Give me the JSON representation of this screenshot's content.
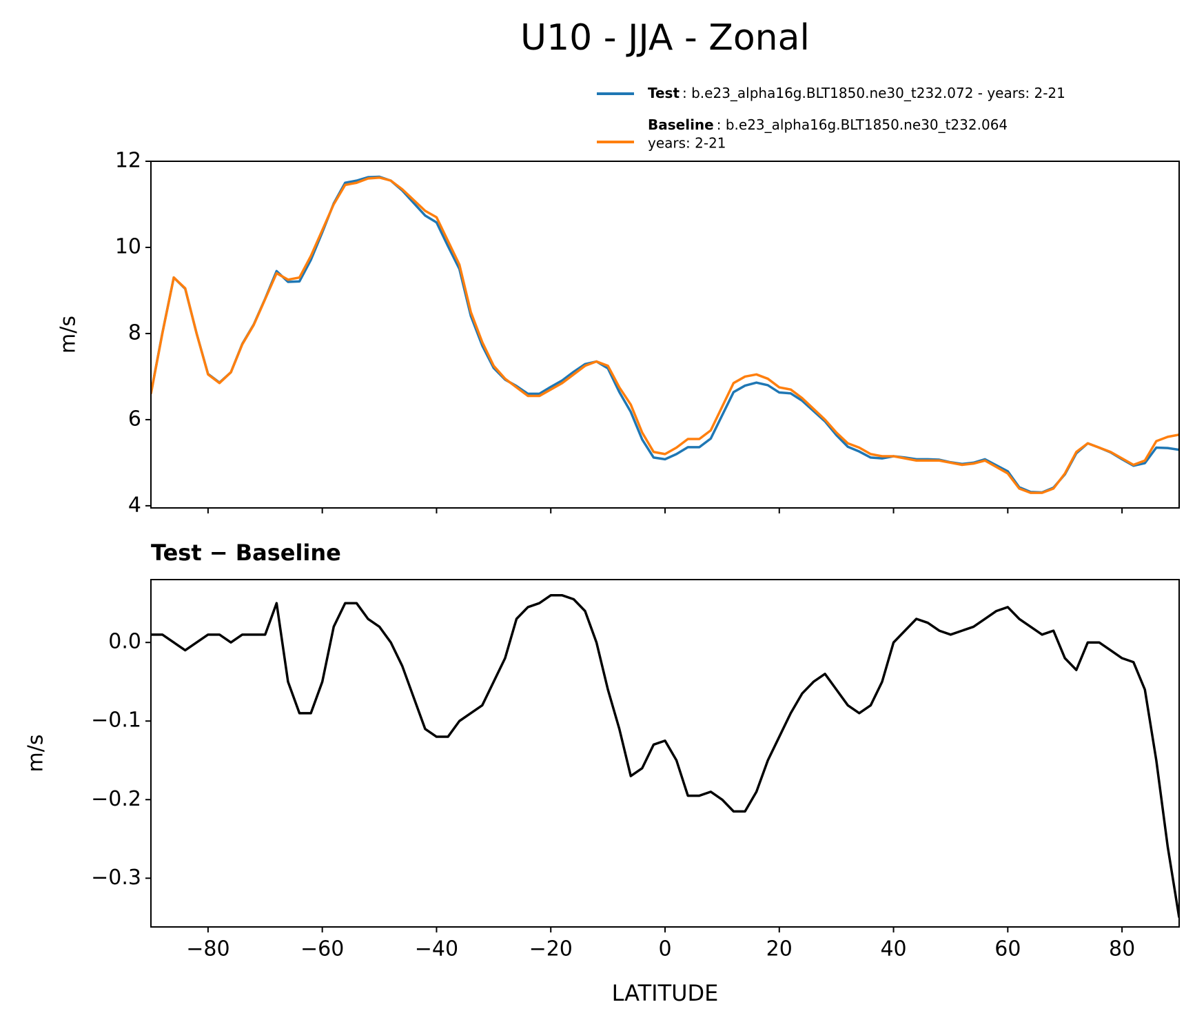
{
  "title": "U10 - JJA - Zonal",
  "chart_data": [
    {
      "type": "line",
      "ylabel": "m/s",
      "x": [
        -90,
        -88,
        -86,
        -84,
        -82,
        -80,
        -78,
        -76,
        -74,
        -72,
        -70,
        -68,
        -66,
        -64,
        -62,
        -60,
        -58,
        -56,
        -54,
        -52,
        -50,
        -48,
        -46,
        -44,
        -42,
        -40,
        -38,
        -36,
        -34,
        -32,
        -30,
        -28,
        -26,
        -24,
        -22,
        -20,
        -18,
        -16,
        -14,
        -12,
        -10,
        -8,
        -6,
        -4,
        -2,
        0,
        2,
        4,
        6,
        8,
        10,
        12,
        14,
        16,
        18,
        20,
        22,
        24,
        26,
        28,
        30,
        32,
        34,
        36,
        38,
        40,
        42,
        44,
        46,
        48,
        50,
        52,
        54,
        56,
        58,
        60,
        62,
        64,
        66,
        68,
        70,
        72,
        74,
        76,
        78,
        80,
        82,
        84,
        86,
        88,
        90
      ],
      "xlim": [
        -90,
        90
      ],
      "xticks": [
        -80,
        -60,
        -40,
        -20,
        0,
        20,
        40,
        60,
        80
      ],
      "ylim": [
        3.95,
        12
      ],
      "yticks": [
        4,
        6,
        8,
        10,
        12
      ],
      "series": [
        {
          "name": "Test",
          "description": [
            ": b.e23_alpha16g.BLT1850.ne30_t232.072 - years: 2-21"
          ],
          "color": "#1f77b4",
          "values": [
            6.61,
            8.01,
            9.3,
            9.04,
            8.0,
            7.06,
            6.86,
            7.1,
            7.76,
            8.21,
            8.81,
            9.45,
            9.2,
            9.21,
            9.71,
            10.35,
            11.02,
            11.5,
            11.55,
            11.63,
            11.64,
            11.55,
            11.32,
            11.03,
            10.74,
            10.58,
            10.03,
            9.5,
            8.41,
            7.72,
            7.2,
            6.93,
            6.78,
            6.6,
            6.6,
            6.76,
            6.91,
            7.11,
            7.29,
            7.35,
            7.19,
            6.64,
            6.18,
            5.54,
            5.12,
            5.08,
            5.2,
            5.36,
            5.36,
            5.56,
            6.1,
            6.64,
            6.79,
            6.86,
            6.8,
            6.63,
            6.61,
            6.44,
            6.2,
            5.96,
            5.64,
            5.37,
            5.26,
            5.12,
            5.1,
            5.15,
            5.12,
            5.08,
            5.08,
            5.07,
            5.01,
            4.97,
            5.0,
            5.08,
            4.94,
            4.8,
            4.43,
            4.32,
            4.31,
            4.42,
            4.73,
            5.22,
            5.45,
            5.35,
            5.24,
            5.08,
            4.93,
            4.99,
            5.35,
            5.34,
            5.3
          ]
        },
        {
          "name": "Baseline",
          "description": [
            ": b.e23_alpha16g.BLT1850.ne30_t232.064",
            "years: 2-21"
          ],
          "color": "#ff7f0e",
          "values": [
            6.6,
            8.0,
            9.3,
            9.05,
            8.0,
            7.05,
            6.85,
            7.1,
            7.75,
            8.2,
            8.8,
            9.4,
            9.25,
            9.3,
            9.8,
            10.4,
            11.0,
            11.45,
            11.5,
            11.6,
            11.62,
            11.55,
            11.35,
            11.1,
            10.85,
            10.7,
            10.15,
            9.6,
            8.5,
            7.8,
            7.25,
            6.95,
            6.75,
            6.55,
            6.55,
            6.7,
            6.85,
            7.05,
            7.25,
            7.35,
            7.25,
            6.75,
            6.35,
            5.7,
            5.25,
            5.2,
            5.35,
            5.55,
            5.55,
            5.75,
            6.3,
            6.85,
            7.0,
            7.05,
            6.95,
            6.75,
            6.7,
            6.5,
            6.25,
            6.0,
            5.7,
            5.45,
            5.35,
            5.2,
            5.15,
            5.15,
            5.1,
            5.05,
            5.05,
            5.05,
            5.0,
            4.95,
            4.98,
            5.05,
            4.9,
            4.75,
            4.4,
            4.3,
            4.3,
            4.4,
            4.75,
            5.25,
            5.45,
            5.35,
            5.25,
            5.1,
            4.95,
            5.05,
            5.5,
            5.6,
            5.65
          ]
        }
      ]
    },
    {
      "type": "line",
      "title": "Test − Baseline",
      "ylabel": "m/s",
      "xlabel": "LATITUDE",
      "x": [
        -90,
        -88,
        -86,
        -84,
        -82,
        -80,
        -78,
        -76,
        -74,
        -72,
        -70,
        -68,
        -66,
        -64,
        -62,
        -60,
        -58,
        -56,
        -54,
        -52,
        -50,
        -48,
        -46,
        -44,
        -42,
        -40,
        -38,
        -36,
        -34,
        -32,
        -30,
        -28,
        -26,
        -24,
        -22,
        -20,
        -18,
        -16,
        -14,
        -12,
        -10,
        -8,
        -6,
        -4,
        -2,
        0,
        2,
        4,
        6,
        8,
        10,
        12,
        14,
        16,
        18,
        20,
        22,
        24,
        26,
        28,
        30,
        32,
        34,
        36,
        38,
        40,
        42,
        44,
        46,
        48,
        50,
        52,
        54,
        56,
        58,
        60,
        62,
        64,
        66,
        68,
        70,
        72,
        74,
        76,
        78,
        80,
        82,
        84,
        86,
        88,
        90
      ],
      "xlim": [
        -90,
        90
      ],
      "xticks": [
        {
          "value": -80,
          "label": "−80"
        },
        {
          "value": -60,
          "label": "−60"
        },
        {
          "value": -40,
          "label": "−40"
        },
        {
          "value": -20,
          "label": "−20"
        },
        0,
        20,
        40,
        60,
        80
      ],
      "ylim": [
        -0.362,
        0.08
      ],
      "yticks": [
        {
          "value": 0,
          "label": "0.0"
        },
        {
          "value": -0.1,
          "label": "−0.1"
        },
        {
          "value": -0.2,
          "label": "−0.2"
        },
        {
          "value": -0.3,
          "label": "−0.3"
        }
      ],
      "series": [
        {
          "color": "#000000",
          "values": [
            0.01,
            0.01,
            0.0,
            -0.01,
            0.0,
            0.01,
            0.01,
            0.0,
            0.01,
            0.01,
            0.01,
            0.05,
            -0.05,
            -0.09,
            -0.09,
            -0.05,
            0.02,
            0.05,
            0.05,
            0.03,
            0.02,
            0.0,
            -0.03,
            -0.07,
            -0.11,
            -0.12,
            -0.12,
            -0.1,
            -0.09,
            -0.08,
            -0.05,
            -0.02,
            0.03,
            0.045,
            0.05,
            0.06,
            0.06,
            0.055,
            0.04,
            0.0,
            -0.06,
            -0.11,
            -0.17,
            -0.16,
            -0.13,
            -0.125,
            -0.15,
            -0.195,
            -0.195,
            -0.19,
            -0.2,
            -0.215,
            -0.215,
            -0.19,
            -0.15,
            -0.12,
            -0.09,
            -0.065,
            -0.05,
            -0.04,
            -0.06,
            -0.08,
            -0.09,
            -0.08,
            -0.05,
            0.0,
            0.015,
            0.03,
            0.025,
            0.015,
            0.01,
            0.015,
            0.02,
            0.03,
            0.04,
            0.045,
            0.03,
            0.02,
            0.01,
            0.015,
            -0.02,
            -0.035,
            0.0,
            0.0,
            -0.01,
            -0.02,
            -0.025,
            -0.06,
            -0.15,
            -0.26,
            -0.35
          ]
        }
      ]
    }
  ]
}
